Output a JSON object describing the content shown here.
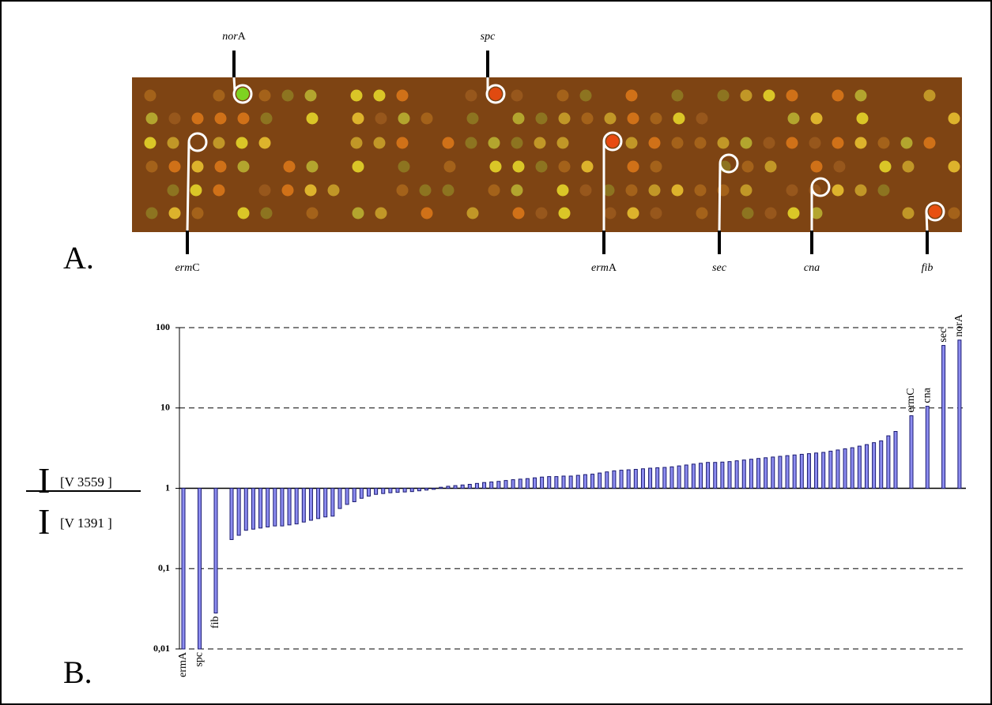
{
  "chart_data": {
    "type": "bar",
    "panel_labels": [
      "A.",
      "B."
    ],
    "array_labels": [
      {
        "italic": "nor",
        "plain": "A"
      },
      {
        "italic": "spc"
      },
      {
        "italic": "erm",
        "plain": "C"
      },
      {
        "italic": "erm",
        "plain": "A"
      },
      {
        "italic": "sec"
      },
      {
        "italic": "cna"
      },
      {
        "italic": "fib"
      }
    ],
    "ylabel": {
      "numerator": "I",
      "numerator_sub": "[V 3559 ]",
      "denominator": "I",
      "denominator_sub": "[V 1391 ]"
    },
    "log_scale": true,
    "grid": true,
    "color": "#8c8cf0",
    "edge_color": "#1a1a70",
    "ylim": [
      0.01,
      100
    ],
    "yticks": [
      {
        "value": 0.01,
        "label": "0,01"
      },
      {
        "value": 0.1,
        "label": "0,1"
      },
      1,
      10,
      100
    ],
    "categories": [
      "ermA",
      "spc",
      "fib",
      null,
      null,
      null,
      null,
      null,
      null,
      null,
      null,
      null,
      null,
      null,
      null,
      null,
      null,
      null,
      null,
      null,
      null,
      null,
      null,
      null,
      null,
      null,
      null,
      null,
      null,
      null,
      null,
      null,
      null,
      null,
      null,
      null,
      null,
      null,
      null,
      null,
      null,
      null,
      null,
      null,
      null,
      null,
      null,
      null,
      null,
      null,
      null,
      null,
      null,
      null,
      null,
      null,
      null,
      null,
      null,
      null,
      null,
      null,
      null,
      null,
      null,
      null,
      null,
      null,
      null,
      null,
      null,
      null,
      null,
      null,
      null,
      null,
      null,
      null,
      null,
      null,
      null,
      null,
      null,
      null,
      null,
      null,
      null,
      null,
      null,
      null,
      null,
      null,
      null,
      null,
      null,
      null,
      "ermC",
      "cna",
      "sec",
      "norA"
    ],
    "values": [
      0.01,
      0.01,
      0.028,
      0.23,
      0.26,
      0.3,
      0.31,
      0.32,
      0.33,
      0.34,
      0.34,
      0.35,
      0.36,
      0.38,
      0.4,
      0.42,
      0.44,
      0.45,
      0.56,
      0.63,
      0.68,
      0.75,
      0.8,
      0.84,
      0.86,
      0.88,
      0.89,
      0.9,
      0.91,
      0.93,
      0.95,
      0.97,
      1.03,
      1.06,
      1.08,
      1.1,
      1.12,
      1.15,
      1.18,
      1.2,
      1.22,
      1.25,
      1.28,
      1.3,
      1.32,
      1.35,
      1.38,
      1.4,
      1.4,
      1.42,
      1.42,
      1.45,
      1.48,
      1.5,
      1.55,
      1.6,
      1.65,
      1.68,
      1.7,
      1.72,
      1.75,
      1.78,
      1.8,
      1.82,
      1.85,
      1.9,
      1.95,
      2,
      2.05,
      2.1,
      2.1,
      2.12,
      2.15,
      2.2,
      2.25,
      2.3,
      2.35,
      2.4,
      2.45,
      2.5,
      2.55,
      2.6,
      2.65,
      2.7,
      2.75,
      2.8,
      2.9,
      3,
      3.1,
      3.2,
      3.35,
      3.5,
      3.7,
      3.9,
      4.5,
      5.1,
      8,
      10.5,
      60,
      70
    ]
  }
}
